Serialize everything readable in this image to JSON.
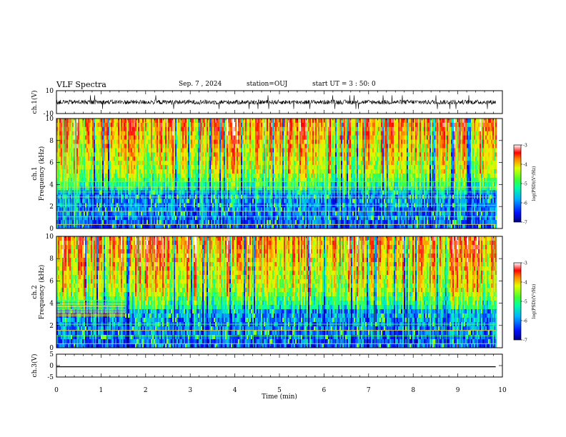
{
  "header": {
    "title": "VLF Spectra",
    "date": "Sep. 7 , 2024",
    "station": "station=OUJ",
    "start": "start UT = 3 : 50: 0"
  },
  "chart_data": [
    {
      "type": "line",
      "panel": "ch1-waveform",
      "ylabel": "ch.1(V)",
      "ylim": [
        -10,
        10
      ],
      "yticks": [
        "10",
        "-10"
      ],
      "xlim": [
        0,
        10
      ],
      "description_values": {
        "baseline_V": 0,
        "typical_amplitude_V": 2,
        "spike_amplitude_V": 6
      }
    },
    {
      "type": "heatmap",
      "panel": "ch1-spectrogram",
      "ylabel": "ch.1 Frequency (kHz)",
      "ylim": [
        0,
        10
      ],
      "yticks": [
        "0",
        "2",
        "4",
        "6",
        "8",
        "10"
      ],
      "xlim": [
        0,
        10
      ],
      "data_end_min": 9.85,
      "colorbar": {
        "label": "log(PSD)(V²/Hz)",
        "range": [
          -7,
          -3
        ],
        "ticks": [
          "-3",
          "-4",
          "-5",
          "-6",
          "-7"
        ]
      }
    },
    {
      "type": "heatmap",
      "panel": "ch2-spectrogram",
      "ylabel": "ch.2 Frequency (kHz)",
      "ylim": [
        0,
        10
      ],
      "yticks": [
        "0",
        "2",
        "4",
        "6",
        "8",
        "10"
      ],
      "xlim": [
        0,
        10
      ],
      "data_end_min": 9.85,
      "colorbar": {
        "label": "log(PSD)(V²/Hz)",
        "range": [
          -7,
          -3
        ],
        "ticks": [
          "-3",
          "-4",
          "-5",
          "-6",
          "-7"
        ]
      }
    },
    {
      "type": "line",
      "panel": "ch3-waveform",
      "ylabel": "ch.3(V)",
      "ylim": [
        -5,
        5
      ],
      "yticks": [
        "5",
        "0",
        "-5"
      ],
      "xlim": [
        0,
        10
      ],
      "series": [
        {
          "x": [
            0,
            9.85
          ],
          "y": [
            -0.5,
            -0.5
          ]
        }
      ]
    }
  ],
  "xaxis": {
    "label": "Time (min)",
    "ticks": [
      "0",
      "1",
      "2",
      "3",
      "4",
      "5",
      "6",
      "7",
      "8",
      "9",
      "10"
    ]
  },
  "colors": {
    "colormap": [
      "#000090",
      "#0010ff",
      "#00a0ff",
      "#00ffb0",
      "#40ff40",
      "#d0ff00",
      "#ffe000",
      "#ff7000",
      "#ff0000",
      "#ff7070",
      "#ffffff"
    ]
  }
}
